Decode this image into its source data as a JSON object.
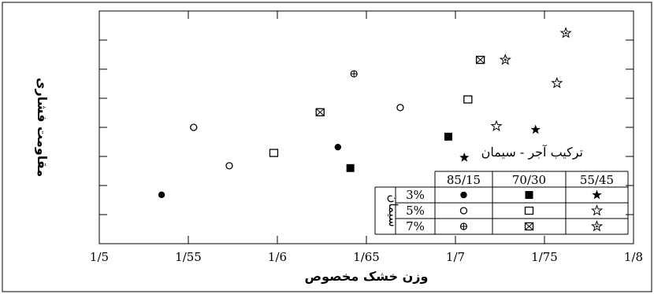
{
  "chart_data": {
    "type": "scatter",
    "title": "",
    "xlabel": "وزن خشک مخصوص",
    "ylabel": "مقاومت فشاری",
    "xlim": [
      1.5,
      1.8
    ],
    "x_ticks": [
      {
        "value": 1.5,
        "label": "1/5"
      },
      {
        "value": 1.55,
        "label": "1/55"
      },
      {
        "value": 1.6,
        "label": "1/6"
      },
      {
        "value": 1.65,
        "label": "1/65"
      },
      {
        "value": 1.7,
        "label": "1/7"
      },
      {
        "value": 1.75,
        "label": "1/75"
      },
      {
        "value": 1.8,
        "label": "1/8"
      }
    ],
    "y_axis_numbered": false,
    "grid": false,
    "legend": {
      "title": "ترکیب آجر - سیمان",
      "group_label": "سیمان",
      "columns": [
        "85/15",
        "70/30",
        "55/45"
      ],
      "rows": [
        "3%",
        "5%",
        "7%"
      ],
      "symbols": [
        [
          "filled-circle",
          "filled-square",
          "filled-star"
        ],
        [
          "open-circle",
          "open-square",
          "open-star"
        ],
        [
          "crossed-circle",
          "crossed-square",
          "star-with-point"
        ]
      ]
    },
    "series": [
      {
        "mix": "85/15",
        "cement": "3%",
        "symbol": "filled-circle",
        "x": 1.535,
        "y": 0.21
      },
      {
        "mix": "85/15",
        "cement": "5%",
        "symbol": "open-circle",
        "x": 1.553,
        "y": 0.5
      },
      {
        "mix": "85/15",
        "cement": "7%",
        "symbol": "crossed-circle",
        "x": 1.643,
        "y": 0.73
      },
      {
        "mix": "85/15",
        "cement": "3%",
        "symbol": "filled-circle",
        "x": 1.634,
        "y": 0.415
      },
      {
        "mix": "85/15",
        "cement": "5%",
        "symbol": "open-circle",
        "x": 1.669,
        "y": 0.585
      },
      {
        "mix": "85/15",
        "cement": "5%",
        "symbol": "open-circle",
        "x": 1.573,
        "y": 0.335
      },
      {
        "mix": "70/30",
        "cement": "5%",
        "symbol": "open-square",
        "x": 1.598,
        "y": 0.39
      },
      {
        "mix": "70/30",
        "cement": "7%",
        "symbol": "crossed-square",
        "x": 1.624,
        "y": 0.565
      },
      {
        "mix": "70/30",
        "cement": "3%",
        "symbol": "filled-square",
        "x": 1.641,
        "y": 0.325
      },
      {
        "mix": "70/30",
        "cement": "3%",
        "symbol": "filled-square",
        "x": 1.696,
        "y": 0.46
      },
      {
        "mix": "70/30",
        "cement": "5%",
        "symbol": "open-square",
        "x": 1.707,
        "y": 0.62
      },
      {
        "mix": "70/30",
        "cement": "7%",
        "symbol": "crossed-square",
        "x": 1.714,
        "y": 0.79
      },
      {
        "mix": "55/45",
        "cement": "3%",
        "symbol": "filled-star",
        "x": 1.705,
        "y": 0.37
      },
      {
        "mix": "55/45",
        "cement": "5%",
        "symbol": "open-star",
        "x": 1.723,
        "y": 0.505
      },
      {
        "mix": "55/45",
        "cement": "3%",
        "symbol": "filled-star",
        "x": 1.745,
        "y": 0.49
      },
      {
        "mix": "55/45",
        "cement": "7%",
        "symbol": "star-with-point",
        "x": 1.728,
        "y": 0.79
      },
      {
        "mix": "55/45",
        "cement": "5%",
        "symbol": "open-star",
        "x": 1.757,
        "y": 0.69
      },
      {
        "mix": "55/45",
        "cement": "7%",
        "symbol": "star-with-point",
        "x": 1.762,
        "y": 0.905
      }
    ]
  }
}
